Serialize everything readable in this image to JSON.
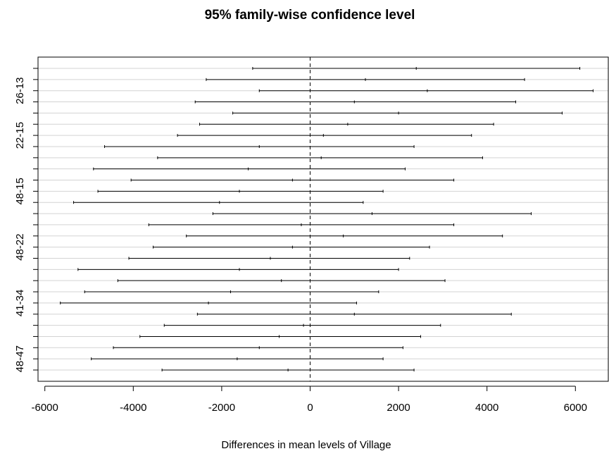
{
  "chart_data": {
    "type": "interval",
    "title": "95% family-wise confidence level",
    "xlabel": "Differences in mean levels of Village",
    "ylabel": "",
    "xlim": [
      -6200,
      6500
    ],
    "x_ticks": [
      -6000,
      -4000,
      -2000,
      0,
      2000,
      4000,
      6000
    ],
    "x_tick_labels": [
      "-6000",
      "-4000",
      "-2000",
      "0",
      "2000",
      "4000",
      "6000"
    ],
    "y_tick_labels": [
      "26-13",
      "22-15",
      "48-15",
      "48-22",
      "41-34",
      "48-47"
    ],
    "reference_line": 0,
    "grid": true,
    "intervals": [
      {
        "label": "",
        "lwr": -1300,
        "diff": 2400,
        "upr": 6100
      },
      {
        "label": "",
        "lwr": -2350,
        "diff": 1250,
        "upr": 4850
      },
      {
        "label": "26-13",
        "lwr": -1150,
        "diff": 2650,
        "upr": 6400
      },
      {
        "label": "",
        "lwr": -2600,
        "diff": 1000,
        "upr": 4650
      },
      {
        "label": "",
        "lwr": -1750,
        "diff": 2000,
        "upr": 5700
      },
      {
        "label": "",
        "lwr": -2500,
        "diff": 850,
        "upr": 4150
      },
      {
        "label": "22-15",
        "lwr": -3000,
        "diff": 300,
        "upr": 3650
      },
      {
        "label": "",
        "lwr": -4650,
        "diff": -1150,
        "upr": 2350
      },
      {
        "label": "",
        "lwr": -3450,
        "diff": 250,
        "upr": 3900
      },
      {
        "label": "",
        "lwr": -4900,
        "diff": -1400,
        "upr": 2150
      },
      {
        "label": "",
        "lwr": -4050,
        "diff": -400,
        "upr": 3250
      },
      {
        "label": "48-15",
        "lwr": -4800,
        "diff": -1600,
        "upr": 1650
      },
      {
        "label": "",
        "lwr": -5350,
        "diff": -2050,
        "upr": 1200
      },
      {
        "label": "",
        "lwr": -2200,
        "diff": 1400,
        "upr": 5000
      },
      {
        "label": "",
        "lwr": -3650,
        "diff": -200,
        "upr": 3250
      },
      {
        "label": "",
        "lwr": -2800,
        "diff": 750,
        "upr": 4350
      },
      {
        "label": "48-22",
        "lwr": -3550,
        "diff": -400,
        "upr": 2700
      },
      {
        "label": "",
        "lwr": -4100,
        "diff": -900,
        "upr": 2250
      },
      {
        "label": "",
        "lwr": -5250,
        "diff": -1600,
        "upr": 2000
      },
      {
        "label": "",
        "lwr": -4350,
        "diff": -650,
        "upr": 3050
      },
      {
        "label": "",
        "lwr": -5100,
        "diff": -1800,
        "upr": 1550
      },
      {
        "label": "41-34",
        "lwr": -5650,
        "diff": -2300,
        "upr": 1050
      },
      {
        "label": "",
        "lwr": -2550,
        "diff": 1000,
        "upr": 4550
      },
      {
        "label": "",
        "lwr": -3300,
        "diff": -150,
        "upr": 2950
      },
      {
        "label": "",
        "lwr": -3850,
        "diff": -700,
        "upr": 2500
      },
      {
        "label": "",
        "lwr": -4450,
        "diff": -1150,
        "upr": 2100
      },
      {
        "label": "48-47",
        "lwr": -4950,
        "diff": -1650,
        "upr": 1650
      },
      {
        "label": "",
        "lwr": -3350,
        "diff": -500,
        "upr": 2350
      }
    ]
  }
}
